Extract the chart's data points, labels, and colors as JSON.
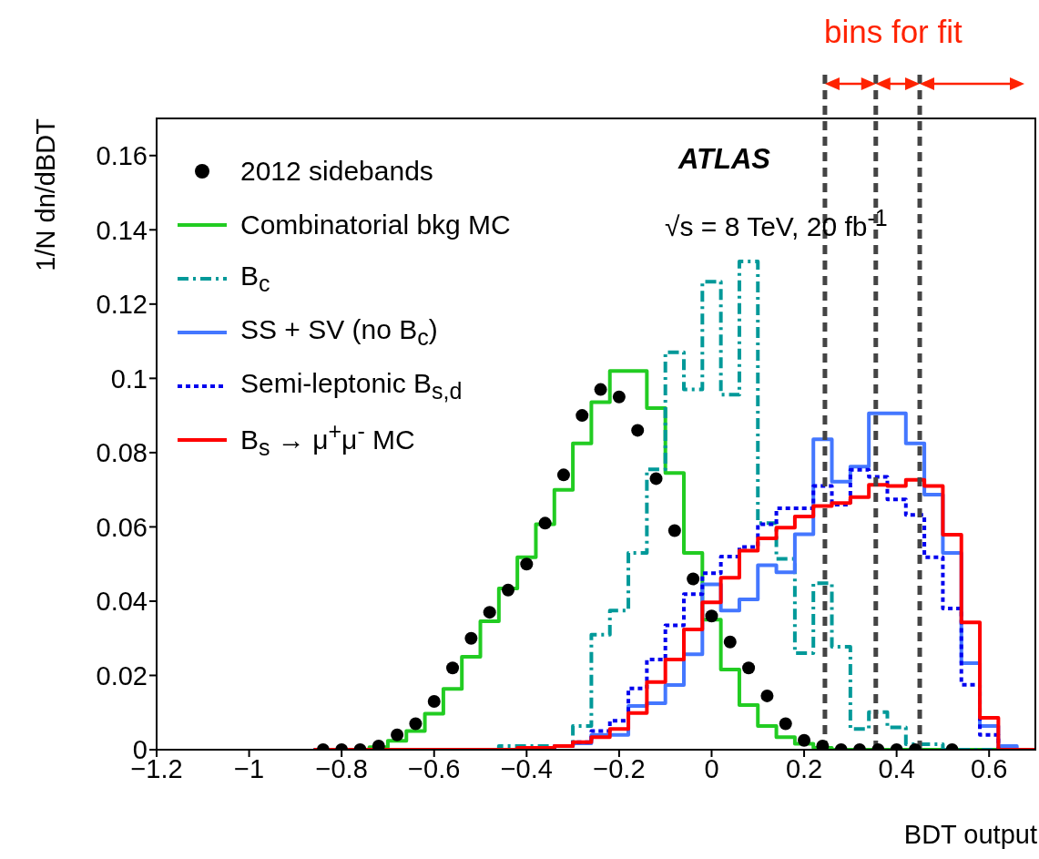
{
  "chart_data": {
    "type": "histogram",
    "xlabel": "BDT output",
    "ylabel": "1/N dn/dBDT",
    "annotations": [
      "ATLAS",
      "√s = 8 TeV, 20 fb$^{-1}$",
      "bins for fit"
    ],
    "bins": [
      -0.86,
      -0.82,
      -0.78,
      -0.74,
      -0.7,
      -0.66,
      -0.62,
      -0.58,
      -0.54,
      -0.5,
      -0.46,
      -0.42,
      -0.38,
      -0.34,
      -0.3,
      -0.26,
      -0.22,
      -0.18,
      -0.14,
      -0.1,
      -0.06,
      -0.02,
      0.02,
      0.06,
      0.1,
      0.14,
      0.18,
      0.22,
      0.26,
      0.3,
      0.34,
      0.38,
      0.42,
      0.46,
      0.5,
      0.54,
      0.58,
      0.62,
      0.66,
      0.7
    ],
    "series": [
      {
        "name": "2012 sidebands",
        "type": "scatter",
        "color": "#000000",
        "marker": "circle",
        "x": [
          -0.84,
          -0.8,
          -0.76,
          -0.72,
          -0.68,
          -0.64,
          -0.6,
          -0.56,
          -0.52,
          -0.48,
          -0.44,
          -0.4,
          -0.36,
          -0.32,
          -0.28,
          -0.24,
          -0.2,
          -0.16,
          -0.12,
          -0.08,
          -0.04,
          0,
          0.04,
          0.08,
          0.12,
          0.16,
          0.2,
          0.24,
          0.28,
          0.32,
          0.36,
          0.4,
          0.44,
          0.52
        ],
        "values": [
          0,
          0,
          0,
          0.001,
          0.004,
          0.007,
          0.013,
          0.022,
          0.03,
          0.037,
          0.043,
          0.05,
          0.061,
          0.074,
          0.09,
          0.097,
          0.095,
          0.086,
          0.073,
          0.059,
          0.046,
          0.036,
          0.029,
          0.022,
          0.0145,
          0.007,
          0.0025,
          0.001,
          0,
          0,
          0,
          0,
          0,
          0
        ]
      },
      {
        "name": "Combinatorial bkg MC",
        "color": "#22cc22",
        "line_style": "solid",
        "values": [
          0,
          0,
          0,
          0.0007,
          0.0024,
          0.005,
          0.0097,
          0.0164,
          0.025,
          0.0346,
          0.0434,
          0.0518,
          0.0607,
          0.07,
          0.0825,
          0.0936,
          0.102,
          0.102,
          0.092,
          0.0745,
          0.053,
          0.035,
          0.0216,
          0.012,
          0.0064,
          0.0034,
          0.0016,
          0.0005,
          0,
          0,
          0,
          0,
          0,
          0,
          0,
          0,
          0,
          0,
          0
        ]
      },
      {
        "name": "B$_{c}$",
        "color": "#009999",
        "line_style": "dashed",
        "values": [
          0,
          0,
          0,
          0,
          0,
          0,
          0,
          0,
          0,
          0,
          0.001,
          0.001,
          0.001,
          0.001,
          0.0064,
          0.031,
          0.0375,
          0.053,
          0.0755,
          0.107,
          0.097,
          0.126,
          0.0956,
          0.1315,
          0.061,
          0.0514,
          0.026,
          0.0448,
          0.0277,
          0.0056,
          0.0101,
          0.006,
          0.0015,
          0.0015,
          0,
          0,
          0,
          0,
          0
        ]
      },
      {
        "name": "SS + SV (no B$_{c}$)",
        "color": "#4477ff",
        "line_style": "solid",
        "values": [
          0,
          0,
          0,
          0,
          0,
          0,
          0,
          0,
          0,
          0,
          0,
          0,
          0,
          0.001,
          0.0017,
          0.004,
          0.004,
          0.0118,
          0.0125,
          0.0174,
          0.0257,
          0.0445,
          0.0375,
          0.0405,
          0.0497,
          0.0478,
          0.058,
          0.0836,
          0.0722,
          0.0762,
          0.0906,
          0.0906,
          0.0825,
          0.0687,
          0.053,
          0.0233,
          0.0064,
          0.001,
          0
        ]
      },
      {
        "name": "Semi-leptonic B$_{s,d}$",
        "color": "#0000ee",
        "line_style": "dotted",
        "values": [
          0,
          0,
          0,
          0,
          0,
          0,
          0,
          0,
          0,
          0,
          0,
          0,
          0,
          0.001,
          0.002,
          0.005,
          0.0078,
          0.0165,
          0.0243,
          0.0335,
          0.0419,
          0.0475,
          0.052,
          0.0546,
          0.0607,
          0.065,
          0.065,
          0.071,
          0.066,
          0.0754,
          0.0735,
          0.0674,
          0.0632,
          0.0518,
          0.038,
          0.0175,
          0.004,
          0,
          0
        ]
      },
      {
        "name": "B$_{s}$ → μ$^{+}$μ$^{-}$ MC",
        "color": "#ff0000",
        "line_style": "solid",
        "values": [
          0,
          0,
          0,
          0,
          0,
          0,
          0,
          0,
          0,
          0,
          0,
          0.0005,
          0.0005,
          0.001,
          0.002,
          0.0034,
          0.0056,
          0.0099,
          0.0182,
          0.0243,
          0.0324,
          0.0397,
          0.0463,
          0.0536,
          0.0569,
          0.0598,
          0.0628,
          0.0656,
          0.0664,
          0.068,
          0.0713,
          0.071,
          0.0727,
          0.071,
          0.0579,
          0.0343,
          0.0086,
          0,
          0
        ]
      }
    ],
    "ref_lines": [
      {
        "axis": "x",
        "value": 0.245,
        "color": "#444444",
        "line_style": "dashed"
      },
      {
        "axis": "x",
        "value": 0.355,
        "color": "#444444",
        "line_style": "dashed"
      },
      {
        "axis": "x",
        "value": 0.45,
        "color": "#444444",
        "line_style": "dashed"
      }
    ],
    "xlim": [
      -1.2,
      0.7
    ],
    "xticks": [
      {
        "value": -1.2,
        "label": "−1.2"
      },
      {
        "value": -1,
        "label": "−1"
      },
      {
        "value": -0.8,
        "label": "−0.8"
      },
      {
        "value": -0.6,
        "label": "−0.6"
      },
      {
        "value": -0.4,
        "label": "−0.4"
      },
      {
        "value": -0.2,
        "label": "−0.2"
      },
      0,
      0.2,
      0.4,
      0.6
    ],
    "ylim": [
      0,
      0.17
    ],
    "yticks": [
      0,
      0.02,
      0.04,
      0.06,
      0.08,
      0.1,
      0.12,
      0.14,
      0.16
    ],
    "grid": false,
    "legend": "top left"
  }
}
